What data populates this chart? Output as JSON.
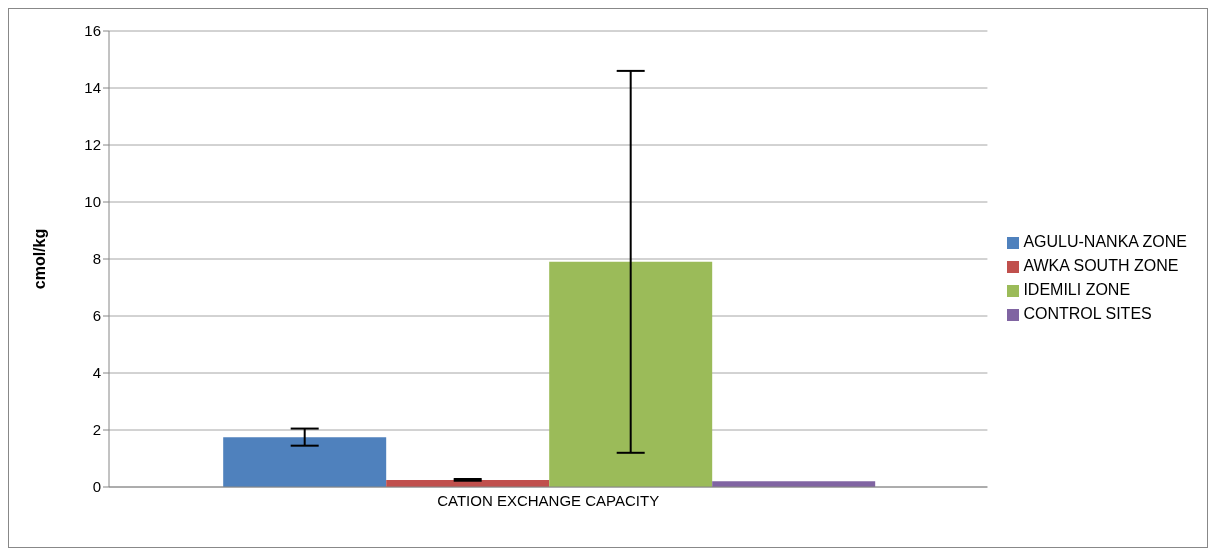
{
  "chart_data": {
    "type": "bar",
    "ylabel": "cmol/kg",
    "categories": [
      "CATION EXCHANGE CAPACITY"
    ],
    "series": [
      {
        "name": "AGULU-NANKA ZONE",
        "color": "#4f81bd",
        "values": [
          1.75
        ],
        "errors": [
          0.3
        ]
      },
      {
        "name": "AWKA SOUTH ZONE",
        "color": "#c0504d",
        "values": [
          0.25
        ],
        "errors": [
          0.03
        ]
      },
      {
        "name": "IDEMILI ZONE",
        "color": "#9bbb59",
        "values": [
          7.9
        ],
        "errors": [
          6.7
        ]
      },
      {
        "name": "CONTROL SITES",
        "color": "#8064a2",
        "values": [
          0.2
        ]
      }
    ],
    "ylim": [
      0,
      16
    ],
    "yticks": [
      0,
      2,
      4,
      6,
      8,
      10,
      12,
      14,
      16
    ],
    "grid": "y",
    "legend": "right"
  }
}
